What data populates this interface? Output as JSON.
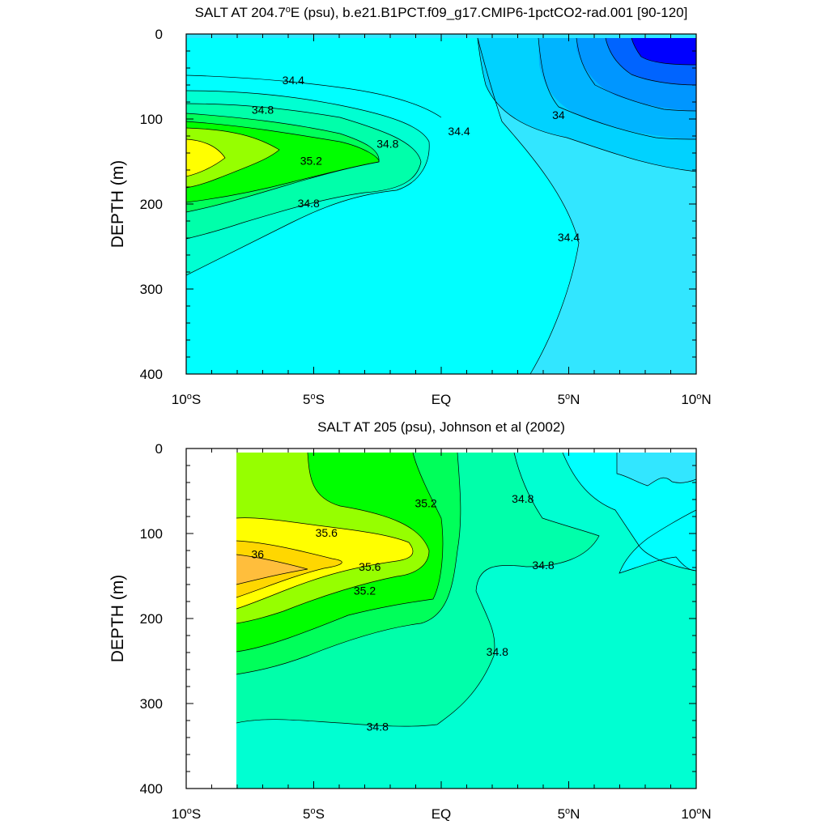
{
  "chart_data": [
    {
      "type": "contour",
      "title": "SALT AT 204.7°E (psu), b.e21.B1PCT.f09_g17.CMIP6-1pctCO2-rad.001 [90-120]",
      "title_parts": [
        "SALT AT 204.7",
        "E (psu), b.e21.B1PCT.f09_g17.CMIP6-1pctCO2-rad.001 [90-120]"
      ],
      "ylabel": "DEPTH (m)",
      "xlabel": "",
      "xlim": [
        -10,
        10
      ],
      "ylim": [
        400,
        0
      ],
      "y_reversed": true,
      "x_ticks": [
        {
          "value": -10,
          "label": "10",
          "deg": true,
          "suffix": "S"
        },
        {
          "value": -5,
          "label": "5",
          "deg": true,
          "suffix": "S"
        },
        {
          "value": 0,
          "label": "EQ",
          "deg": false,
          "suffix": ""
        },
        {
          "value": 5,
          "label": "5",
          "deg": true,
          "suffix": "N"
        },
        {
          "value": 10,
          "label": "10",
          "deg": true,
          "suffix": "N"
        }
      ],
      "y_ticks": [
        0,
        100,
        200,
        300,
        400
      ],
      "contour_interval": 0.2,
      "contour_line_labels": [
        {
          "text": "34.4",
          "x": -5.8,
          "y": 55
        },
        {
          "text": "34.8",
          "x": -7.0,
          "y": 90
        },
        {
          "text": "35.2",
          "x": -5.1,
          "y": 150
        },
        {
          "text": "34.8",
          "x": -2.1,
          "y": 130
        },
        {
          "text": "34.8",
          "x": -5.2,
          "y": 200
        },
        {
          "text": "34.4",
          "x": 0.7,
          "y": 115
        },
        {
          "text": "34",
          "x": 4.6,
          "y": 96
        },
        {
          "text": "34.4",
          "x": 5.0,
          "y": 240
        }
      ],
      "regions_psu": [
        {
          "level": 34.2,
          "color": "#32e6ff"
        },
        {
          "level": 34.4,
          "color": "#00ffff"
        },
        {
          "level": 34.0,
          "color": "#00d2ff"
        },
        {
          "level": 33.8,
          "color": "#00b4ff"
        },
        {
          "level": 33.6,
          "color": "#0096ff"
        },
        {
          "level": 33.4,
          "color": "#0064ff"
        },
        {
          "level": 33.2,
          "color": "#0000ff"
        },
        {
          "level": 34.6,
          "color": "#00ffd2"
        },
        {
          "level": 34.8,
          "color": "#00ffaa"
        },
        {
          "level": 35.0,
          "color": "#00ff5a"
        },
        {
          "level": 35.2,
          "color": "#00ff00"
        },
        {
          "level": 35.4,
          "color": "#96ff00"
        },
        {
          "level": 35.6,
          "color": "#ffff00"
        }
      ]
    },
    {
      "type": "contour",
      "title": "SALT AT 205 (psu), Johnson et al (2002)",
      "ylabel": "DEPTH (m)",
      "xlabel": "",
      "xlim": [
        -10,
        10
      ],
      "ylim": [
        400,
        0
      ],
      "y_reversed": true,
      "data_x_range": [
        -8,
        10
      ],
      "x_ticks": [
        {
          "value": -10,
          "label": "10",
          "deg": true,
          "suffix": "S"
        },
        {
          "value": -5,
          "label": "5",
          "deg": true,
          "suffix": "S"
        },
        {
          "value": 0,
          "label": "EQ",
          "deg": false,
          "suffix": ""
        },
        {
          "value": 5,
          "label": "5",
          "deg": true,
          "suffix": "N"
        },
        {
          "value": 10,
          "label": "10",
          "deg": true,
          "suffix": "N"
        }
      ],
      "y_ticks": [
        0,
        100,
        200,
        300,
        400
      ],
      "contour_interval": 0.2,
      "contour_line_labels": [
        {
          "text": "35.2",
          "x": -0.6,
          "y": 65
        },
        {
          "text": "34.8",
          "x": 3.2,
          "y": 60
        },
        {
          "text": "35.6",
          "x": -4.5,
          "y": 100
        },
        {
          "text": "36",
          "x": -7.2,
          "y": 125
        },
        {
          "text": "35.6",
          "x": -2.8,
          "y": 140
        },
        {
          "text": "35.2",
          "x": -3.0,
          "y": 168
        },
        {
          "text": "34.8",
          "x": 4.0,
          "y": 138
        },
        {
          "text": "34.8",
          "x": 2.2,
          "y": 240
        },
        {
          "text": "34.8",
          "x": -2.5,
          "y": 328
        }
      ],
      "regions_psu": [
        {
          "level": 35.4,
          "color": "#96ff00"
        },
        {
          "level": 35.2,
          "color": "#00ff00"
        },
        {
          "level": 35.0,
          "color": "#00ff5a"
        },
        {
          "level": 34.8,
          "color": "#00ffaa"
        },
        {
          "level": 34.6,
          "color": "#00ffd2"
        },
        {
          "level": 34.4,
          "color": "#00ffff"
        },
        {
          "level": 34.2,
          "color": "#32e6ff"
        },
        {
          "level": 35.6,
          "color": "#ffff00"
        },
        {
          "level": 35.8,
          "color": "#ffd700"
        },
        {
          "level": 36.0,
          "color": "#ffbe3c"
        }
      ]
    }
  ]
}
